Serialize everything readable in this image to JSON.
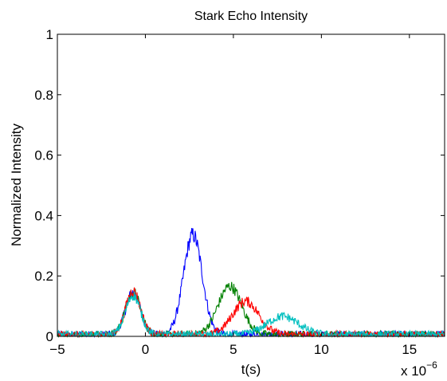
{
  "chart_data": {
    "type": "line",
    "title": "Stark Echo Intensity",
    "xlabel": "t(s)",
    "ylabel": "Normalized Intensity",
    "x_multiplier": {
      "base": "x 10",
      "exponent": "−6"
    },
    "xlim": [
      -5,
      17
    ],
    "ylim": [
      0,
      1
    ],
    "xticks": [
      -5,
      0,
      5,
      10,
      15
    ],
    "xtick_labels": [
      "−5",
      "0",
      "5",
      "10",
      "15"
    ],
    "yticks": [
      0,
      0.2,
      0.4,
      0.6,
      0.8,
      1
    ],
    "ytick_labels": [
      "0",
      "0.2",
      "0.4",
      "0.6",
      "0.8",
      "1"
    ],
    "grid": false,
    "noise_level": 0.012,
    "series": [
      {
        "color": "#0000ff",
        "peaks": [
          {
            "center": -0.7,
            "height": 0.14,
            "width": 0.6
          },
          {
            "center": 2.7,
            "height": 0.33,
            "width": 0.75
          }
        ]
      },
      {
        "color": "#008000",
        "peaks": [
          {
            "center": -0.7,
            "height": 0.14,
            "width": 0.6
          },
          {
            "center": 4.8,
            "height": 0.16,
            "width": 0.95
          }
        ]
      },
      {
        "color": "#ff0000",
        "peaks": [
          {
            "center": -0.7,
            "height": 0.145,
            "width": 0.6
          },
          {
            "center": 5.7,
            "height": 0.11,
            "width": 1.05
          }
        ]
      },
      {
        "color": "#00bfbf",
        "peaks": [
          {
            "center": -0.7,
            "height": 0.13,
            "width": 0.6
          },
          {
            "center": 7.8,
            "height": 0.06,
            "width": 1.25
          }
        ]
      }
    ]
  }
}
